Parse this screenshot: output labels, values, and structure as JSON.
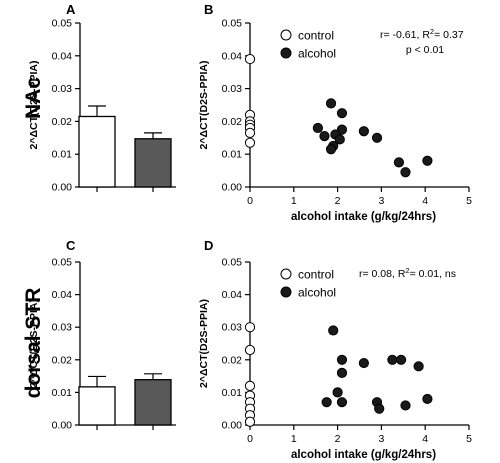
{
  "rows": [
    {
      "label": "NAc",
      "bar_panel": "A",
      "scatter_panel": "B"
    },
    {
      "label": "dorsal STR",
      "bar_panel": "C",
      "scatter_panel": "D"
    }
  ],
  "colors": {
    "control": "#ffffff",
    "alcohol": "#595959",
    "stroke": "#000000",
    "point_alcohol": "#1a1a1a"
  },
  "chart_data": [
    {
      "id": "A",
      "type": "bar",
      "title": "",
      "ylabel": "2^ΔCT(D2S-PPIA)",
      "xlabel": "",
      "ylim": [
        0,
        0.05
      ],
      "yticks": [
        "0.00",
        "0.01",
        "0.02",
        "0.03",
        "0.04",
        "0.05"
      ],
      "categories": [
        "control",
        "alcohol"
      ],
      "values": [
        0.0215,
        0.0147
      ],
      "errors": [
        0.0032,
        0.0018
      ],
      "legend": "none"
    },
    {
      "id": "B",
      "type": "scatter",
      "title": "",
      "xlabel": "alcohol intake (g/kg/24hrs)",
      "ylabel": "2^ΔCT(D2S-PPIA)",
      "xlim": [
        0,
        5
      ],
      "ylim": [
        0,
        0.05
      ],
      "xticks": [
        "0",
        "1",
        "2",
        "3",
        "4",
        "5"
      ],
      "yticks": [
        "0.00",
        "0.01",
        "0.02",
        "0.03",
        "0.04",
        "0.05"
      ],
      "legend": "top-left",
      "stats": {
        "line1_prefix": "r= -0.61, R",
        "sup": "2",
        "line1_suffix": "= 0.37",
        "line2": "p < 0.01"
      },
      "series": [
        {
          "name": "control",
          "points": [
            [
              0,
              0.039
            ],
            [
              0,
              0.022
            ],
            [
              0,
              0.02
            ],
            [
              0,
              0.019
            ],
            [
              0,
              0.018
            ],
            [
              0,
              0.0165
            ],
            [
              0,
              0.0135
            ]
          ]
        },
        {
          "name": "alcohol",
          "points": [
            [
              1.85,
              0.0255
            ],
            [
              2.1,
              0.0225
            ],
            [
              1.55,
              0.018
            ],
            [
              2.1,
              0.0175
            ],
            [
              1.95,
              0.016
            ],
            [
              1.7,
              0.0155
            ],
            [
              2.05,
              0.0145
            ],
            [
              1.9,
              0.0125
            ],
            [
              1.85,
              0.0115
            ],
            [
              2.6,
              0.017
            ],
            [
              2.9,
              0.015
            ],
            [
              3.4,
              0.0075
            ],
            [
              3.55,
              0.0045
            ],
            [
              4.05,
              0.008
            ]
          ]
        }
      ]
    },
    {
      "id": "C",
      "type": "bar",
      "title": "",
      "ylabel": "2^ΔCT(D2S-PPIA)",
      "xlabel": "",
      "ylim": [
        0,
        0.05
      ],
      "yticks": [
        "0.00",
        "0.01",
        "0.02",
        "0.03",
        "0.04",
        "0.05"
      ],
      "categories": [
        "control",
        "alcohol"
      ],
      "values": [
        0.0117,
        0.0139
      ],
      "errors": [
        0.0032,
        0.0018
      ],
      "legend": "none"
    },
    {
      "id": "D",
      "type": "scatter",
      "title": "",
      "xlabel": "alcohol intake (g/kg/24hrs)",
      "ylabel": "2^ΔCT(D2S-PPIA)",
      "xlim": [
        0,
        5
      ],
      "ylim": [
        0,
        0.05
      ],
      "xticks": [
        "0",
        "1",
        "2",
        "3",
        "4",
        "5"
      ],
      "yticks": [
        "0.00",
        "0.01",
        "0.02",
        "0.03",
        "0.04",
        "0.05"
      ],
      "legend": "top-left",
      "stats": {
        "line1_prefix": "r= 0.08, R",
        "sup": "2",
        "line1_suffix": "= 0.01, ns",
        "line2": ""
      },
      "series": [
        {
          "name": "control",
          "points": [
            [
              0,
              0.03
            ],
            [
              0,
              0.023
            ],
            [
              0,
              0.012
            ],
            [
              0,
              0.009
            ],
            [
              0,
              0.007
            ],
            [
              0,
              0.005
            ],
            [
              0,
              0.003
            ],
            [
              0,
              0.001
            ]
          ]
        },
        {
          "name": "alcohol",
          "points": [
            [
              1.9,
              0.029
            ],
            [
              2.1,
              0.02
            ],
            [
              2.1,
              0.016
            ],
            [
              2.0,
              0.01
            ],
            [
              1.75,
              0.007
            ],
            [
              2.1,
              0.007
            ],
            [
              2.6,
              0.019
            ],
            [
              2.9,
              0.007
            ],
            [
              2.95,
              0.005
            ],
            [
              3.25,
              0.02
            ],
            [
              3.45,
              0.02
            ],
            [
              3.55,
              0.006
            ],
            [
              3.85,
              0.018
            ],
            [
              4.05,
              0.008
            ]
          ]
        }
      ]
    }
  ]
}
